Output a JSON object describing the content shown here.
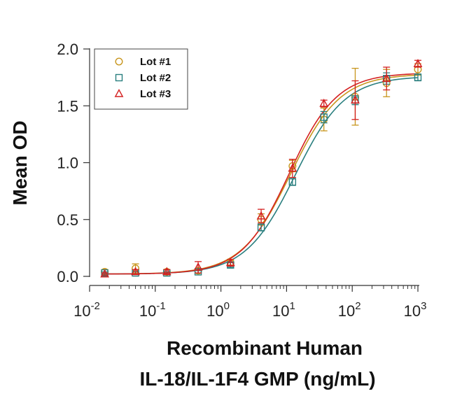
{
  "chart_data": {
    "type": "scatter",
    "xscale": "log",
    "xlim": [
      0.01,
      1000
    ],
    "ylim": [
      0.0,
      2.0
    ],
    "xticks": [
      {
        "value": 0.01,
        "base": "10",
        "exp": "-2"
      },
      {
        "value": 0.1,
        "base": "10",
        "exp": "-1"
      },
      {
        "value": 1,
        "base": "10",
        "exp": "0"
      },
      {
        "value": 10,
        "base": "10",
        "exp": "1"
      },
      {
        "value": 100,
        "base": "10",
        "exp": "2"
      },
      {
        "value": 1000,
        "base": "10",
        "exp": "3"
      }
    ],
    "yticks": [
      {
        "value": 0.0,
        "label": "0.0"
      },
      {
        "value": 0.5,
        "label": "0.5"
      },
      {
        "value": 1.0,
        "label": "1.0"
      },
      {
        "value": 1.5,
        "label": "1.5"
      },
      {
        "value": 2.0,
        "label": "2.0"
      }
    ],
    "xlabel_line1": "Recombinant Human",
    "xlabel_line2": "IL-18/IL-1F4 GMP (ng/mL)",
    "ylabel": "Mean OD",
    "legend_position": "top-left",
    "grid": false,
    "x": [
      0.017,
      0.05,
      0.15,
      0.45,
      1.4,
      4.1,
      12.3,
      37,
      111,
      333,
      1000
    ],
    "series": [
      {
        "name": "Lot #1",
        "marker": "circle",
        "color": "#C8961E",
        "y": [
          0.04,
          0.07,
          0.04,
          0.05,
          0.12,
          0.5,
          0.97,
          1.38,
          1.58,
          1.7,
          1.82
        ],
        "err": [
          0.02,
          0.04,
          0.02,
          0.02,
          0.02,
          0.05,
          0.05,
          0.1,
          0.25,
          0.12,
          0.05
        ],
        "fit": {
          "bottom": 0.02,
          "top": 1.78,
          "ec50": 11.5,
          "hill": 1.15
        }
      },
      {
        "name": "Lot #2",
        "marker": "square",
        "color": "#2A7F7F",
        "y": [
          0.03,
          0.03,
          0.03,
          0.04,
          0.1,
          0.43,
          0.83,
          1.4,
          1.55,
          1.74,
          1.75
        ],
        "err": [
          0.01,
          0.01,
          0.01,
          0.01,
          0.02,
          0.03,
          0.03,
          0.05,
          0.04,
          0.05,
          0.03
        ],
        "fit": {
          "bottom": 0.02,
          "top": 1.76,
          "ec50": 13.5,
          "hill": 1.15
        }
      },
      {
        "name": "Lot #3",
        "marker": "triangle",
        "color": "#D42020",
        "y": [
          0.02,
          0.04,
          0.04,
          0.08,
          0.12,
          0.53,
          0.95,
          1.52,
          1.55,
          1.74,
          1.87
        ],
        "err": [
          0.01,
          0.02,
          0.02,
          0.05,
          0.03,
          0.06,
          0.08,
          0.03,
          0.17,
          0.1,
          0.03
        ],
        "fit": {
          "bottom": 0.02,
          "top": 1.79,
          "ec50": 11.0,
          "hill": 1.2
        }
      }
    ]
  }
}
